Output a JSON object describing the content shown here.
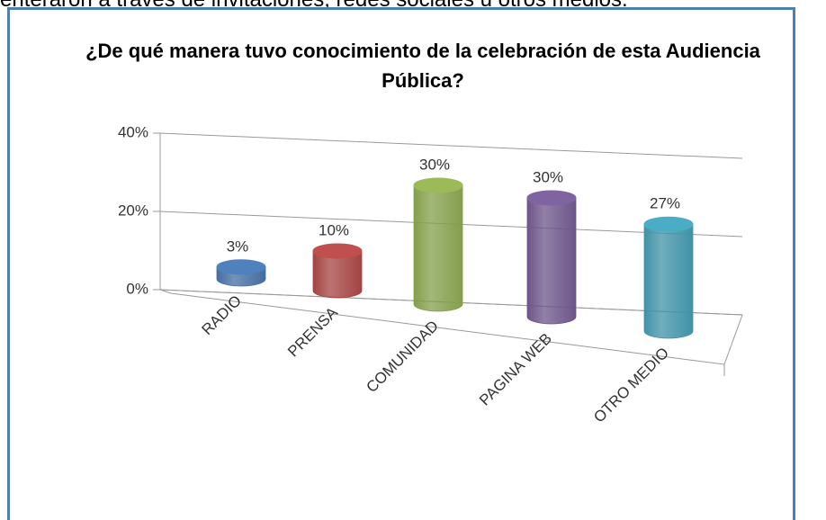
{
  "header_text": "enteraron a través de invitaciones, redes sociales u otros medios.",
  "chart_data": {
    "type": "bar3d",
    "title": "¿De qué manera tuvo conocimiento de la celebración de esta Audiencia Pública?",
    "categories": [
      "RADIO",
      "PRENSA",
      "COMUNIDAD",
      "PAGINA WEB",
      "OTRO MEDIO"
    ],
    "values": [
      3,
      10,
      30,
      30,
      27
    ],
    "value_labels": [
      "3%",
      "10%",
      "30%",
      "30%",
      "27%"
    ],
    "colors": [
      "#4f81bd",
      "#c0504d",
      "#9bbb59",
      "#8064a2",
      "#4bacc6"
    ],
    "ylim": [
      0,
      40
    ],
    "yticks": [
      {
        "value": 0,
        "label": "0%"
      },
      {
        "value": 20,
        "label": "20%"
      },
      {
        "value": 40,
        "label": "40%"
      }
    ],
    "grid": true
  }
}
